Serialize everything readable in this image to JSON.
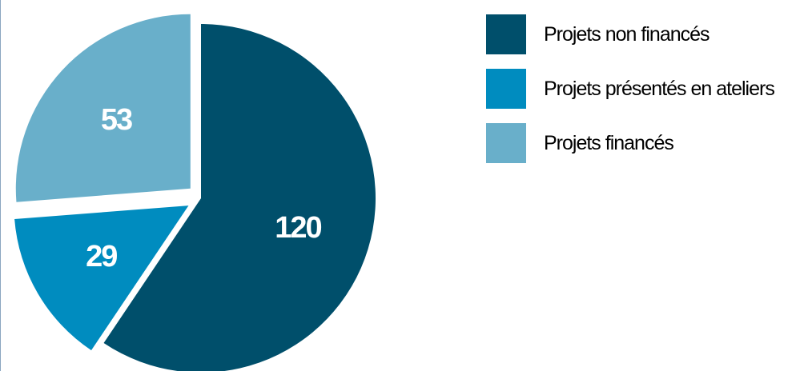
{
  "chart_data": {
    "type": "pie",
    "slices": [
      {
        "name": "Projets non financés",
        "value": 120,
        "label": "120",
        "color": "#004f6b"
      },
      {
        "name": "Projets présentés en ateliers",
        "value": 29,
        "label": "29",
        "color": "#008cbf"
      },
      {
        "name": "Projets financés",
        "value": 53,
        "label": "53",
        "color": "#69afca"
      }
    ],
    "exploded": true,
    "legend_position": "right"
  }
}
